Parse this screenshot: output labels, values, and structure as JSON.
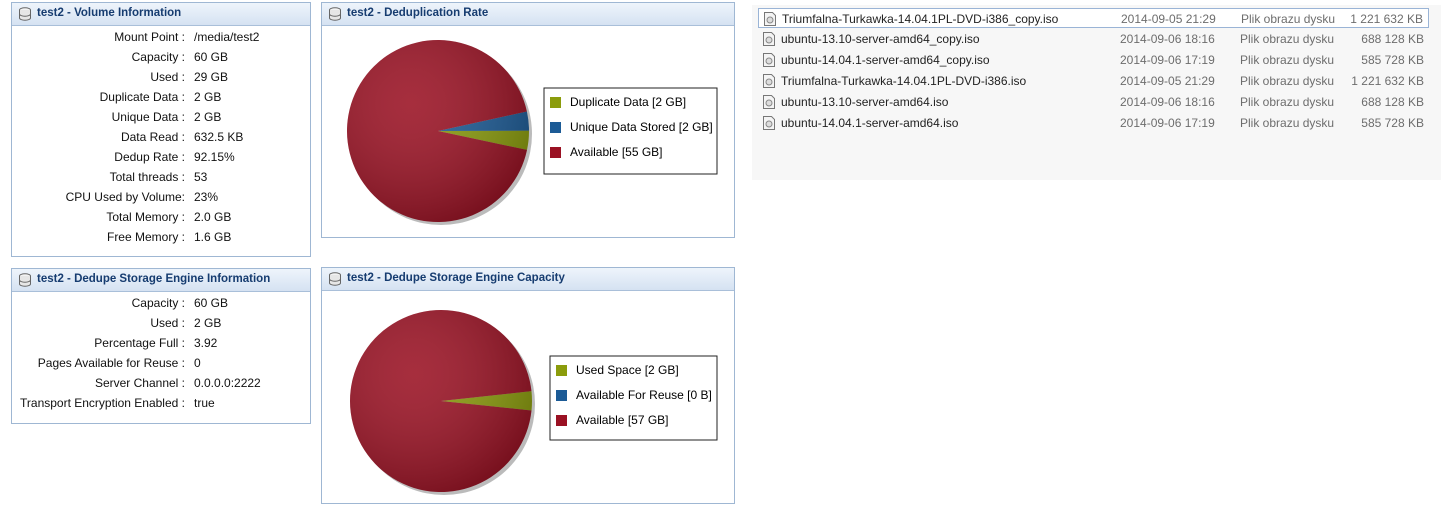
{
  "volume_info": {
    "title": "test2 - Volume Information",
    "rows": [
      {
        "label": "Mount Point :",
        "value": "/media/test2"
      },
      {
        "label": "Capacity :",
        "value": "60 GB"
      },
      {
        "label": "Used :",
        "value": "29 GB"
      },
      {
        "label": "Duplicate Data :",
        "value": "2 GB"
      },
      {
        "label": "Unique Data :",
        "value": "2 GB"
      },
      {
        "label": "Data Read :",
        "value": "632.5 KB"
      },
      {
        "label": "Dedup Rate :",
        "value": "92.15%"
      },
      {
        "label": "Total threads :",
        "value": "53"
      },
      {
        "label": "CPU Used by Volume:",
        "value": "23%"
      },
      {
        "label": "Total Memory :",
        "value": "2.0 GB"
      },
      {
        "label": "Free Memory :",
        "value": "1.6 GB"
      }
    ]
  },
  "engine_info": {
    "title": "test2 - Dedupe Storage Engine Information",
    "rows": [
      {
        "label": "Capacity :",
        "value": "60 GB"
      },
      {
        "label": "Used :",
        "value": "2 GB"
      },
      {
        "label": "Percentage Full :",
        "value": "3.92"
      },
      {
        "label": "Pages Available for Reuse :",
        "value": "0"
      },
      {
        "label": "Server Channel :",
        "value": "0.0.0.0:2222"
      },
      {
        "label": "Transport Encryption Enabled :",
        "value": "true"
      }
    ]
  },
  "chart_data": [
    {
      "type": "pie",
      "title": "test2 - Deduplication Rate",
      "categories": [
        "Duplicate Data [2 GB]",
        "Unique Data Stored [2 GB]",
        "Available [55 GB]"
      ],
      "values": [
        2,
        2,
        55
      ],
      "colors": [
        "#8b9c0c",
        "#1c5b96",
        "#9a1123"
      ]
    },
    {
      "type": "pie",
      "title": "test2 - Dedupe Storage Engine Capacity",
      "categories": [
        "Used Space [2 GB]",
        "Available For Reuse [0 B]",
        "Available [57 GB]"
      ],
      "values": [
        2,
        0,
        57
      ],
      "colors": [
        "#8b9c0c",
        "#1c5b96",
        "#9a1123"
      ]
    }
  ],
  "files": {
    "rows": [
      {
        "name": "Triumfalna-Turkawka-14.04.1PL-DVD-i386_copy.iso",
        "date": "2014-09-05 21:29",
        "type": "Plik obrazu dysku",
        "size": "1 221 632 KB"
      },
      {
        "name": "ubuntu-13.10-server-amd64_copy.iso",
        "date": "2014-09-06 18:16",
        "type": "Plik obrazu dysku",
        "size": "688 128 KB"
      },
      {
        "name": "ubuntu-14.04.1-server-amd64_copy.iso",
        "date": "2014-09-06 17:19",
        "type": "Plik obrazu dysku",
        "size": "585 728 KB"
      },
      {
        "name": "Triumfalna-Turkawka-14.04.1PL-DVD-i386.iso",
        "date": "2014-09-05 21:29",
        "type": "Plik obrazu dysku",
        "size": "1 221 632 KB"
      },
      {
        "name": "ubuntu-13.10-server-amd64.iso",
        "date": "2014-09-06 18:16",
        "type": "Plik obrazu dysku",
        "size": "688 128 KB"
      },
      {
        "name": "ubuntu-14.04.1-server-amd64.iso",
        "date": "2014-09-06 17:19",
        "type": "Plik obrazu dysku",
        "size": "585 728 KB"
      }
    ]
  }
}
